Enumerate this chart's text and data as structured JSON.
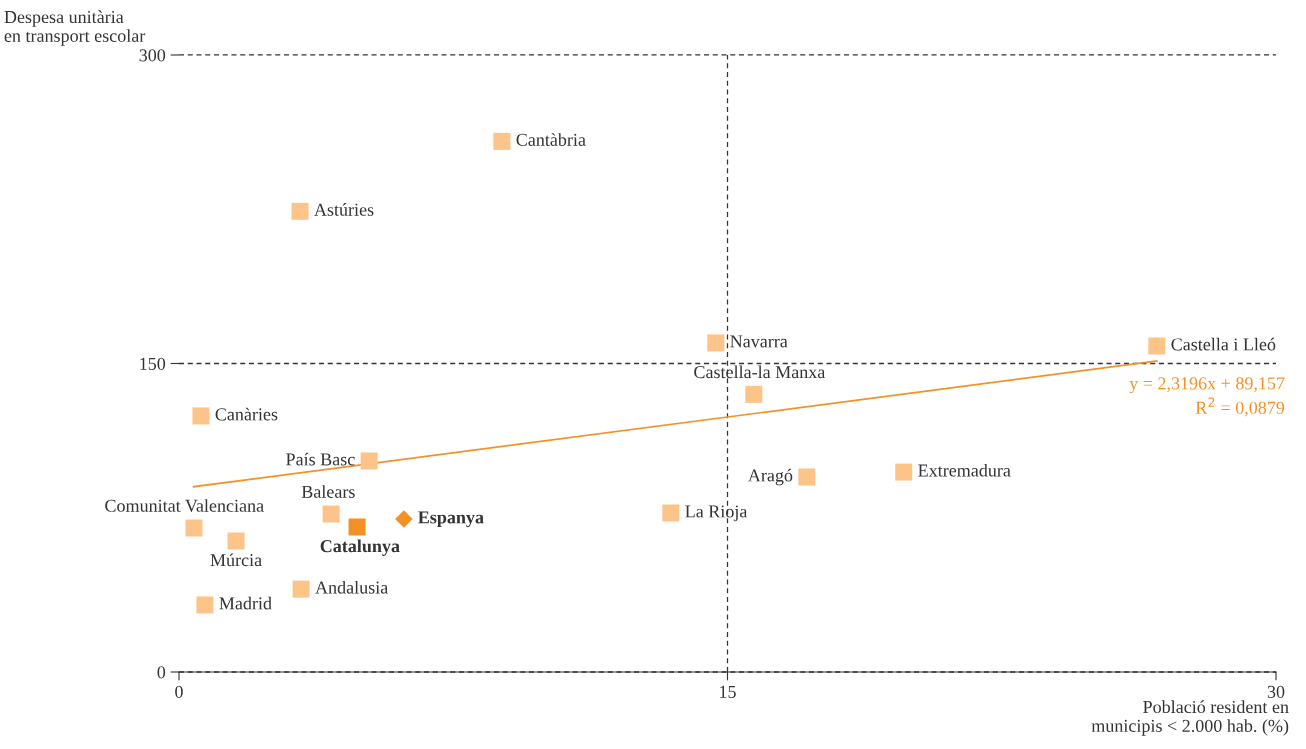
{
  "chart_data": {
    "type": "scatter",
    "xlabel": "Població resident en\nmunicipis < 2.000 hab. (%)",
    "ylabel": "Despesa unitària\nen transport escolar",
    "xlim": [
      0,
      30
    ],
    "xticks": [
      0,
      15,
      30
    ],
    "ylim": [
      0,
      300
    ],
    "yticks": [
      0,
      150,
      300
    ],
    "marker": "square",
    "series": [
      {
        "color": "#fdc48a",
        "x": [
          8.83,
          3.31,
          14.68,
          26.74,
          15.72,
          0.6,
          5.2,
          17.17,
          19.82,
          4.16,
          13.45,
          0.41,
          1.56,
          3.34,
          0.71
        ],
        "values": [
          258,
          224,
          160,
          158.5,
          135,
          124.5,
          102.6,
          94.8,
          97.2,
          76.8,
          77.3,
          70,
          63.7,
          40.3,
          32.6
        ]
      },
      {
        "color": "#f39125",
        "x": [
          4.87
        ],
        "values": [
          70.5
        ]
      },
      {
        "color": "#f39125",
        "marker": "diamond",
        "x": [
          6.15
        ],
        "values": [
          74.4
        ]
      },
      {
        "type": "line",
        "color": "#f39125",
        "marker": "none",
        "x": [
          0.4,
          26.74
        ],
        "values": [
          90.1,
          151.2
        ]
      }
    ],
    "grid": "y",
    "ref_lines": [
      {
        "axis": "x",
        "value": 15,
        "line_style": "dashed"
      }
    ],
    "annotations": [
      {
        "text": "Cantàbria",
        "x": 8.83,
        "y": 258
      },
      {
        "text": "Astúries",
        "x": 3.31,
        "y": 224
      },
      {
        "text": "Navarra",
        "x": 14.68,
        "y": 160
      },
      {
        "text": "Castella i Lleó",
        "x": 26.74,
        "y": 158.5
      },
      {
        "text": "Castella-la Manxa",
        "x": 15.72,
        "y": 135
      },
      {
        "text": "Canàries",
        "x": 0.6,
        "y": 124.5
      },
      {
        "text": "País Basc",
        "x": 5.2,
        "y": 102.6
      },
      {
        "text": "Aragó",
        "x": 17.17,
        "y": 94.8
      },
      {
        "text": "Extremadura",
        "x": 19.82,
        "y": 97.2
      },
      {
        "text": "Balears",
        "x": 4.16,
        "y": 76.8
      },
      {
        "text": "La Rioja",
        "x": 13.45,
        "y": 77.3
      },
      {
        "text": "Comunitat Valenciana",
        "x": 0.41,
        "y": 70
      },
      {
        "text": "Múrcia",
        "x": 1.56,
        "y": 63.7
      },
      {
        "text": "Andalusia",
        "x": 3.34,
        "y": 40.3
      },
      {
        "text": "Madrid",
        "x": 0.71,
        "y": 32.6
      },
      {
        "text": "Catalunya",
        "x": 4.87,
        "y": 70.5
      },
      {
        "text": "Espanya",
        "x": 6.15,
        "y": 74.4
      },
      "y = 2,3196x + 89,157",
      "R$^{2}$ = 0,0879"
    ]
  }
}
